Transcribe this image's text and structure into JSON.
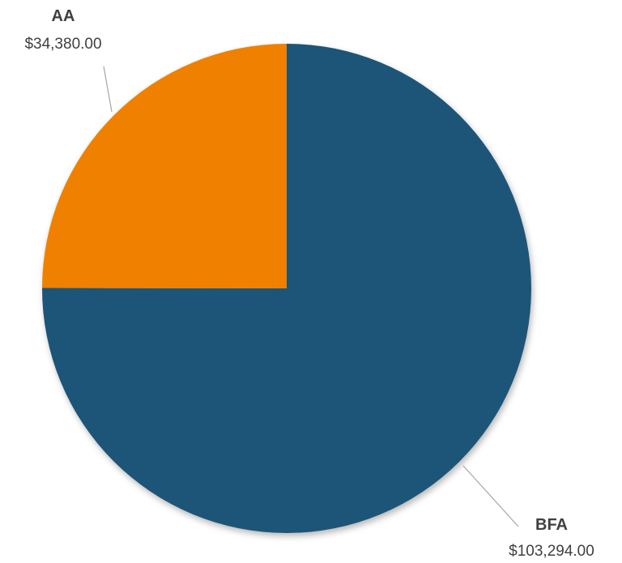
{
  "chart_data": {
    "type": "pie",
    "slices": [
      {
        "label": "AA",
        "value": 34380.0,
        "value_label": "$34,380.00",
        "color": "#F08000"
      },
      {
        "label": "BFA",
        "value": 103294.0,
        "value_label": "$103,294.00",
        "color": "#1D5478"
      }
    ],
    "legend": false,
    "start": "top",
    "direction": "counterclockwise-from-top for first slice"
  }
}
